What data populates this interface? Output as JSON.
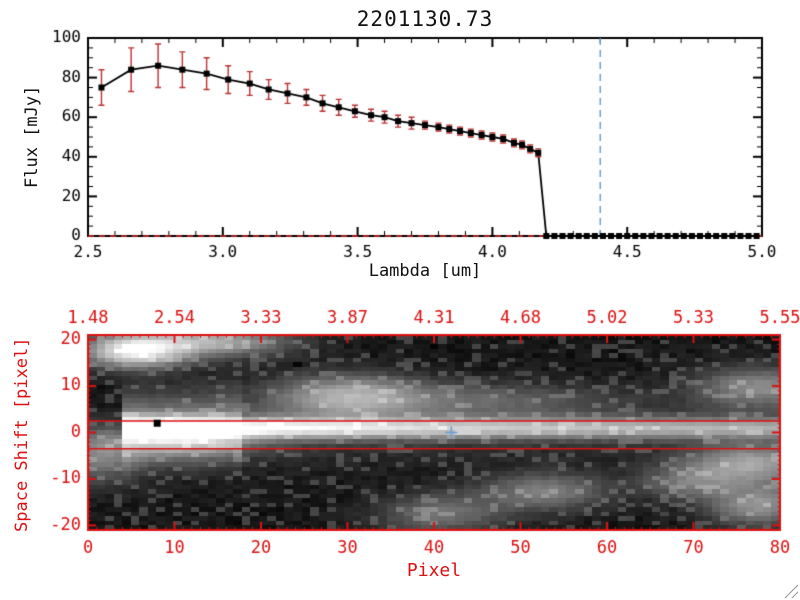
{
  "figure": {
    "background": "#ffffff"
  },
  "window": {
    "resize_grip": "diagonal-grip"
  },
  "chart_data": [
    {
      "type": "line",
      "title": "2201130.73",
      "xlabel": "Lambda [um]",
      "ylabel": "Flux [mJy]",
      "xlim": [
        2.5,
        5.0
      ],
      "ylim": [
        0,
        100
      ],
      "xticks": [
        2.5,
        3.0,
        3.5,
        4.0,
        4.5,
        5.0
      ],
      "xtick_labels": [
        "2.5",
        "3.0",
        "3.5",
        "4.0",
        "4.5",
        "5.0"
      ],
      "x_minor_step": 0.1,
      "yticks": [
        0,
        20,
        40,
        60,
        80,
        100
      ],
      "ytick_labels": [
        "0",
        "20",
        "40",
        "60",
        "80",
        "100"
      ],
      "y_minor_step": 5,
      "marker": "filled-square",
      "line_color": "#000000",
      "error_color": "#bb3333",
      "zero_line": {
        "y": 0,
        "color": "#cc2222",
        "style": "dashed"
      },
      "vline": {
        "x": 4.4,
        "color": "#6699cc",
        "style": "dashed"
      },
      "points": [
        [
          2.55,
          75,
          9
        ],
        [
          2.66,
          84,
          11
        ],
        [
          2.76,
          86,
          11
        ],
        [
          2.85,
          84,
          9
        ],
        [
          2.94,
          82,
          8
        ],
        [
          3.02,
          79,
          7
        ],
        [
          3.1,
          77,
          6
        ],
        [
          3.17,
          74,
          5
        ],
        [
          3.24,
          72,
          5
        ],
        [
          3.31,
          70,
          4
        ],
        [
          3.37,
          67,
          4
        ],
        [
          3.43,
          65,
          4
        ],
        [
          3.49,
          63,
          3
        ],
        [
          3.55,
          61,
          3
        ],
        [
          3.6,
          60,
          3
        ],
        [
          3.65,
          58,
          3
        ],
        [
          3.7,
          57,
          3
        ],
        [
          3.75,
          56,
          2
        ],
        [
          3.8,
          55,
          2
        ],
        [
          3.84,
          54,
          2
        ],
        [
          3.88,
          53,
          2
        ],
        [
          3.92,
          52,
          2
        ],
        [
          3.96,
          51,
          2
        ],
        [
          4.0,
          50,
          2
        ],
        [
          4.04,
          49,
          2
        ],
        [
          4.08,
          47,
          2
        ],
        [
          4.11,
          46,
          2
        ],
        [
          4.14,
          44,
          2
        ],
        [
          4.17,
          42,
          2
        ],
        [
          4.2,
          0,
          0
        ],
        [
          4.23,
          0,
          0
        ],
        [
          4.26,
          0,
          0
        ],
        [
          4.29,
          0,
          0
        ],
        [
          4.32,
          0,
          0
        ],
        [
          4.35,
          0,
          0
        ],
        [
          4.38,
          0,
          0
        ],
        [
          4.41,
          0,
          0
        ],
        [
          4.44,
          0,
          0
        ],
        [
          4.47,
          0,
          0
        ],
        [
          4.5,
          0,
          0
        ],
        [
          4.53,
          0,
          0
        ],
        [
          4.56,
          0,
          0
        ],
        [
          4.59,
          0,
          0
        ],
        [
          4.62,
          0,
          0
        ],
        [
          4.65,
          0,
          0
        ],
        [
          4.68,
          0,
          0
        ],
        [
          4.71,
          0,
          0
        ],
        [
          4.74,
          0,
          0
        ],
        [
          4.77,
          0,
          0
        ],
        [
          4.8,
          0,
          0
        ],
        [
          4.83,
          0,
          0
        ],
        [
          4.86,
          0,
          0
        ],
        [
          4.89,
          0,
          0
        ],
        [
          4.92,
          0,
          0
        ],
        [
          4.95,
          0,
          0
        ],
        [
          4.98,
          0,
          0
        ]
      ]
    },
    {
      "type": "heatmap",
      "xlabel": "Pixel",
      "ylabel": "Space Shift [pixel]",
      "xlim": [
        0,
        80
      ],
      "ylim": [
        -21,
        21
      ],
      "xticks": [
        0,
        10,
        20,
        30,
        40,
        50,
        60,
        70,
        80
      ],
      "xtick_labels": [
        "0",
        "10",
        "20",
        "30",
        "40",
        "50",
        "60",
        "70",
        "80"
      ],
      "yticks": [
        -20,
        -10,
        0,
        10,
        20
      ],
      "ytick_labels": [
        "-20",
        "-10",
        "0",
        "10",
        "20"
      ],
      "top_axis_labels": [
        "1.48",
        "2.54",
        "3.33",
        "3.87",
        "4.31",
        "4.68",
        "5.02",
        "5.33",
        "5.55"
      ],
      "axis_color": "#dd1111",
      "aperture_lines": [
        2.5,
        -3.5
      ],
      "marker_square": {
        "x": 8,
        "y": 2,
        "color": "#000000"
      },
      "marker_cross": {
        "x": 42,
        "y": 0,
        "color": "#6aa0d8"
      },
      "streak": {
        "y": 1,
        "sigma": 1.6,
        "halo_sigma": 5,
        "amp_left": 1.0,
        "amp_right": 0.42,
        "x_start": 4
      },
      "blobs": [
        [
          5,
          18,
          4,
          2.5,
          0.9
        ],
        [
          14,
          20,
          6,
          2.2,
          0.55
        ],
        [
          30,
          8,
          6,
          3.2,
          0.5
        ],
        [
          45,
          7,
          11,
          2.6,
          0.22
        ],
        [
          78,
          10,
          5,
          3,
          0.4
        ],
        [
          41,
          -18,
          5,
          3,
          0.3
        ],
        [
          53,
          -13,
          5,
          2.8,
          0.35
        ],
        [
          70,
          -11,
          4,
          2.5,
          0.3
        ],
        [
          77,
          -7,
          5,
          3,
          0.5
        ],
        [
          78,
          -16,
          4,
          3,
          0.45
        ],
        [
          1,
          -5,
          3,
          4,
          0.35
        ],
        [
          10,
          -2,
          6,
          2.5,
          0.4
        ]
      ],
      "dark_spots": [
        [
          24,
          15
        ],
        [
          40,
          19
        ]
      ],
      "noise": 0.055
    }
  ]
}
